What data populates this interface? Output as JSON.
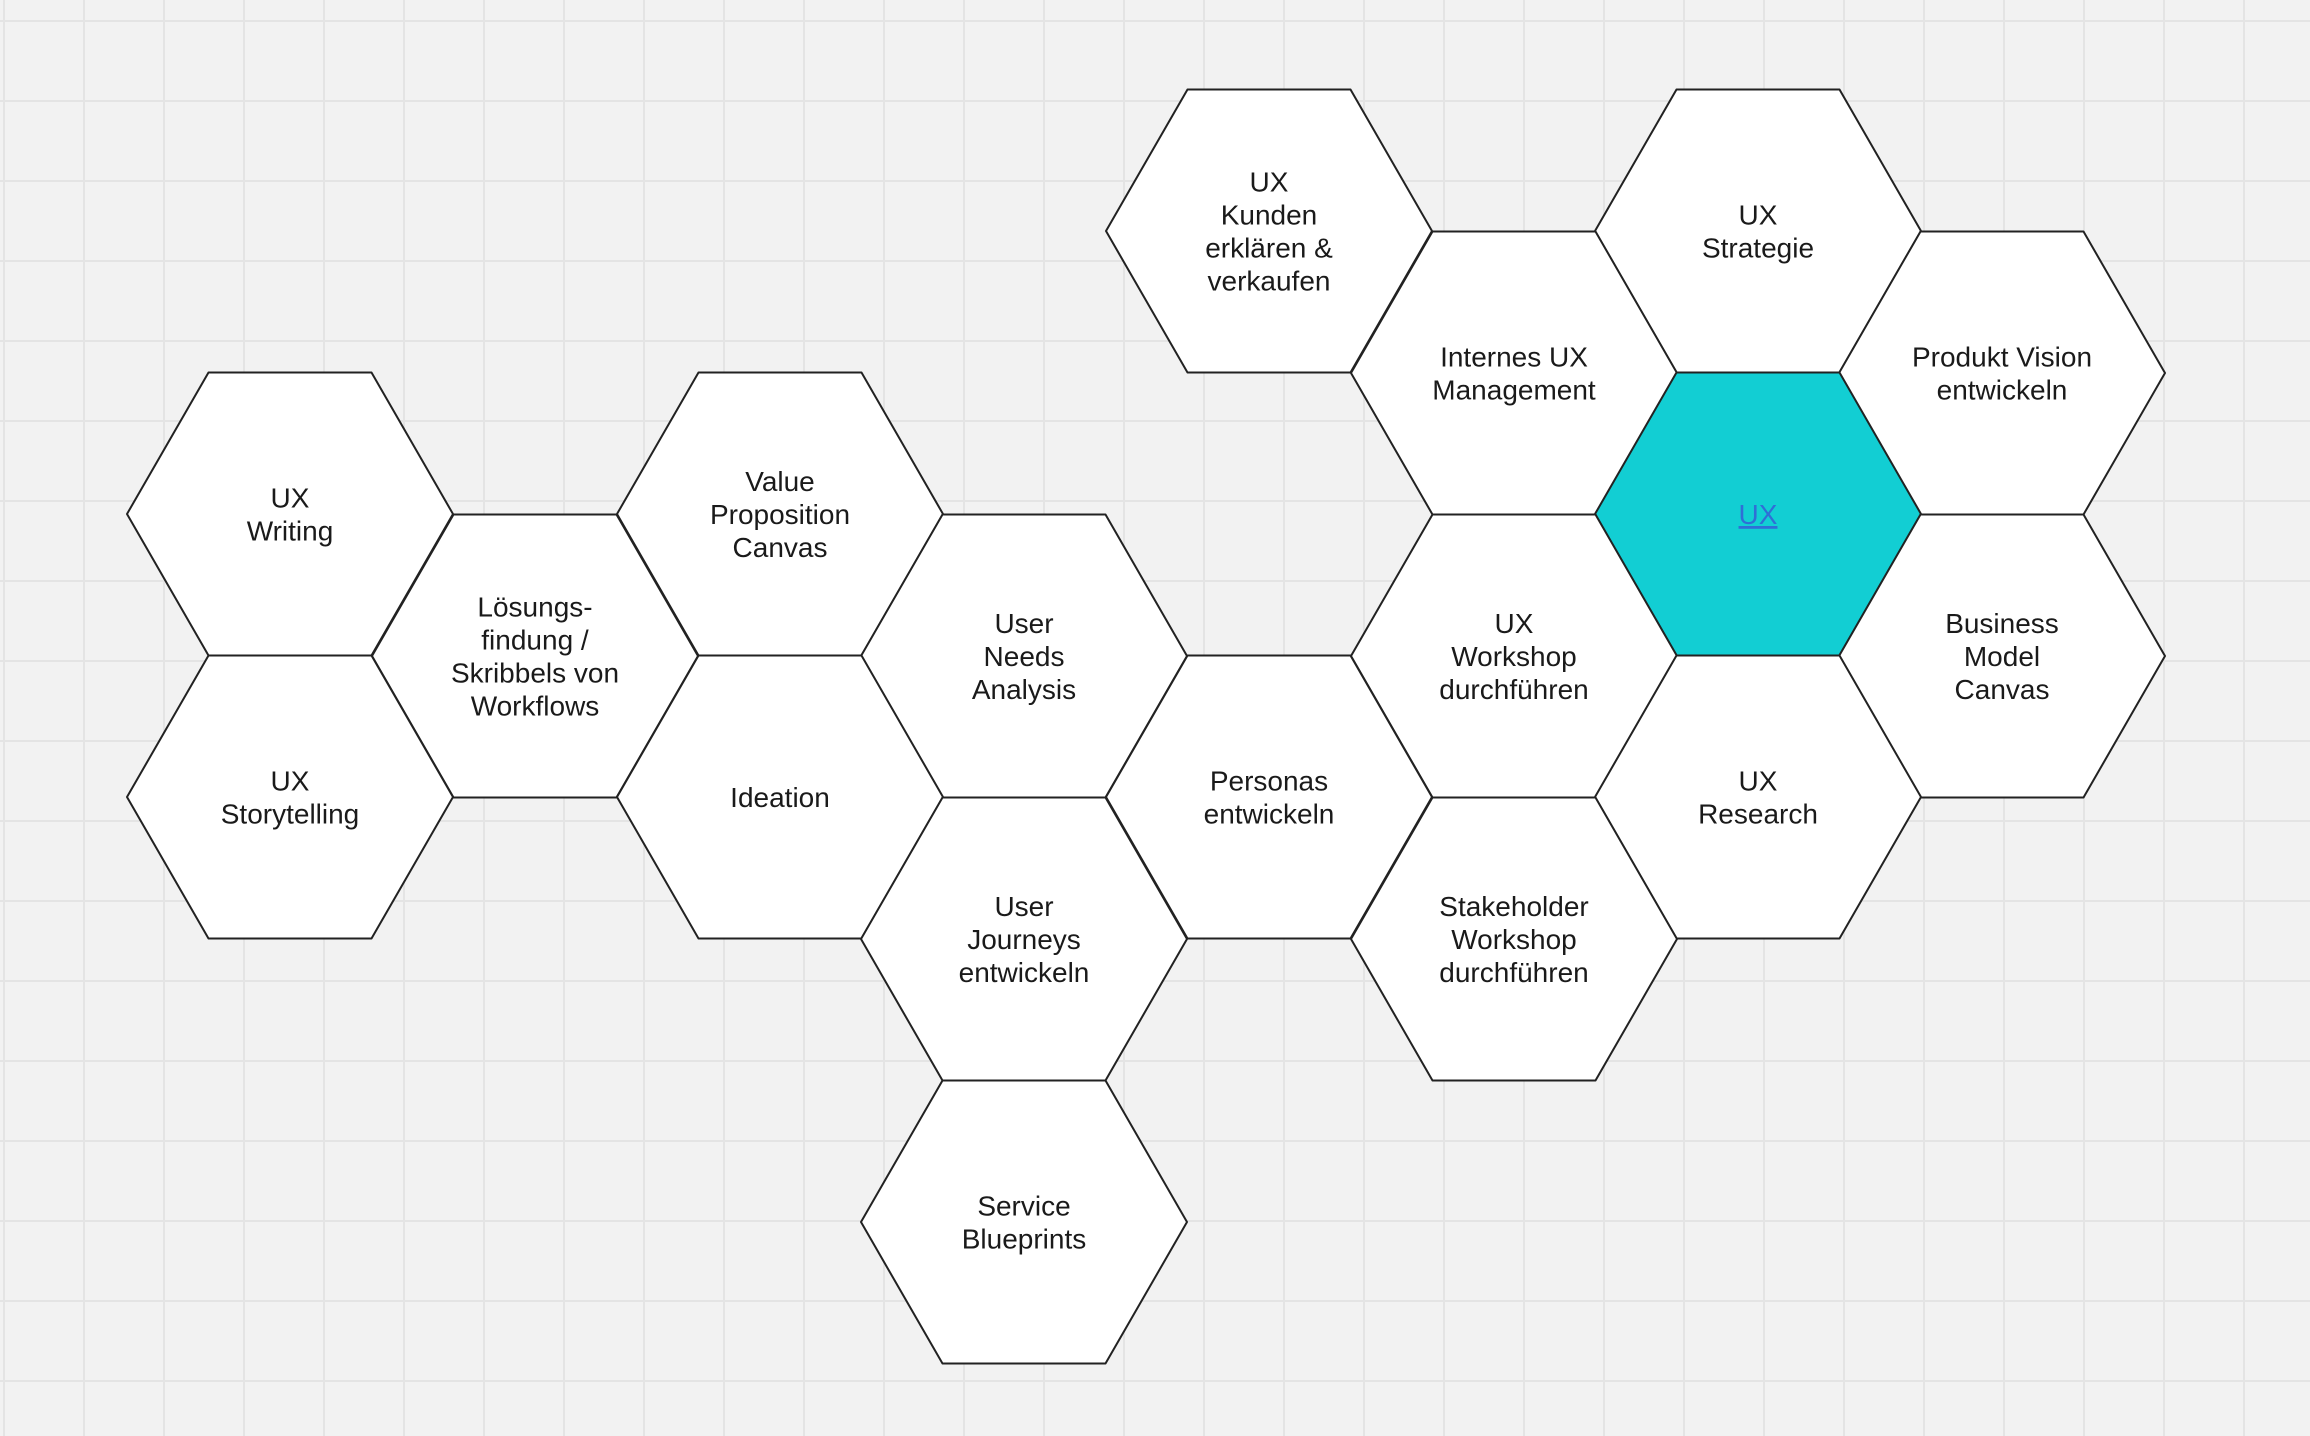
{
  "colors": {
    "hex_fill": "#ffffff",
    "hex_active_fill": "#12ced3",
    "link_text": "#2f6fd6"
  },
  "hexes": [
    {
      "id": "ux-kunden",
      "name": "hex-ux-kunden",
      "lines": [
        "UX",
        "Kunden",
        "erklären &",
        "verkaufen"
      ]
    },
    {
      "id": "ux-strategie",
      "name": "hex-ux-strategie",
      "lines": [
        "UX",
        "Strategie"
      ]
    },
    {
      "id": "internes-ux",
      "name": "hex-internes-ux-management",
      "lines": [
        "Internes UX",
        "Management"
      ]
    },
    {
      "id": "produkt-vision",
      "name": "hex-produkt-vision",
      "lines": [
        "Produkt Vision",
        "entwickeln"
      ]
    },
    {
      "id": "ux-writing",
      "name": "hex-ux-writing",
      "lines": [
        "UX",
        "Writing"
      ]
    },
    {
      "id": "value-prop",
      "name": "hex-value-proposition-canvas",
      "lines": [
        "Value",
        "Proposition",
        "Canvas"
      ]
    },
    {
      "id": "ux-center",
      "name": "hex-ux-center",
      "lines": [
        "UX"
      ],
      "active": true,
      "link": true
    },
    {
      "id": "loesungsfindung",
      "name": "hex-loesungsfindung",
      "lines": [
        "Lösungs-",
        "findung /",
        "Skribbels von",
        "Workflows"
      ]
    },
    {
      "id": "user-needs",
      "name": "hex-user-needs-analysis",
      "lines": [
        "User",
        "Needs",
        "Analysis"
      ]
    },
    {
      "id": "ux-workshop",
      "name": "hex-ux-workshop",
      "lines": [
        "UX",
        "Workshop",
        "durchführen"
      ]
    },
    {
      "id": "business-model",
      "name": "hex-business-model-canvas",
      "lines": [
        "Business",
        "Model",
        "Canvas"
      ]
    },
    {
      "id": "ux-storytelling",
      "name": "hex-ux-storytelling",
      "lines": [
        "UX",
        "Storytelling"
      ]
    },
    {
      "id": "ideation",
      "name": "hex-ideation",
      "lines": [
        "Ideation"
      ]
    },
    {
      "id": "personas",
      "name": "hex-personas",
      "lines": [
        "Personas",
        "entwickeln"
      ]
    },
    {
      "id": "ux-research",
      "name": "hex-ux-research",
      "lines": [
        "UX",
        "Research"
      ]
    },
    {
      "id": "user-journeys",
      "name": "hex-user-journeys",
      "lines": [
        "User",
        "Journeys",
        "entwickeln"
      ]
    },
    {
      "id": "stakeholder",
      "name": "hex-stakeholder-workshop",
      "lines": [
        "Stakeholder",
        "Workshop",
        "durchführen"
      ]
    },
    {
      "id": "service-blueprints",
      "name": "hex-service-blueprints",
      "lines": [
        "Service",
        "Blueprints"
      ]
    }
  ]
}
